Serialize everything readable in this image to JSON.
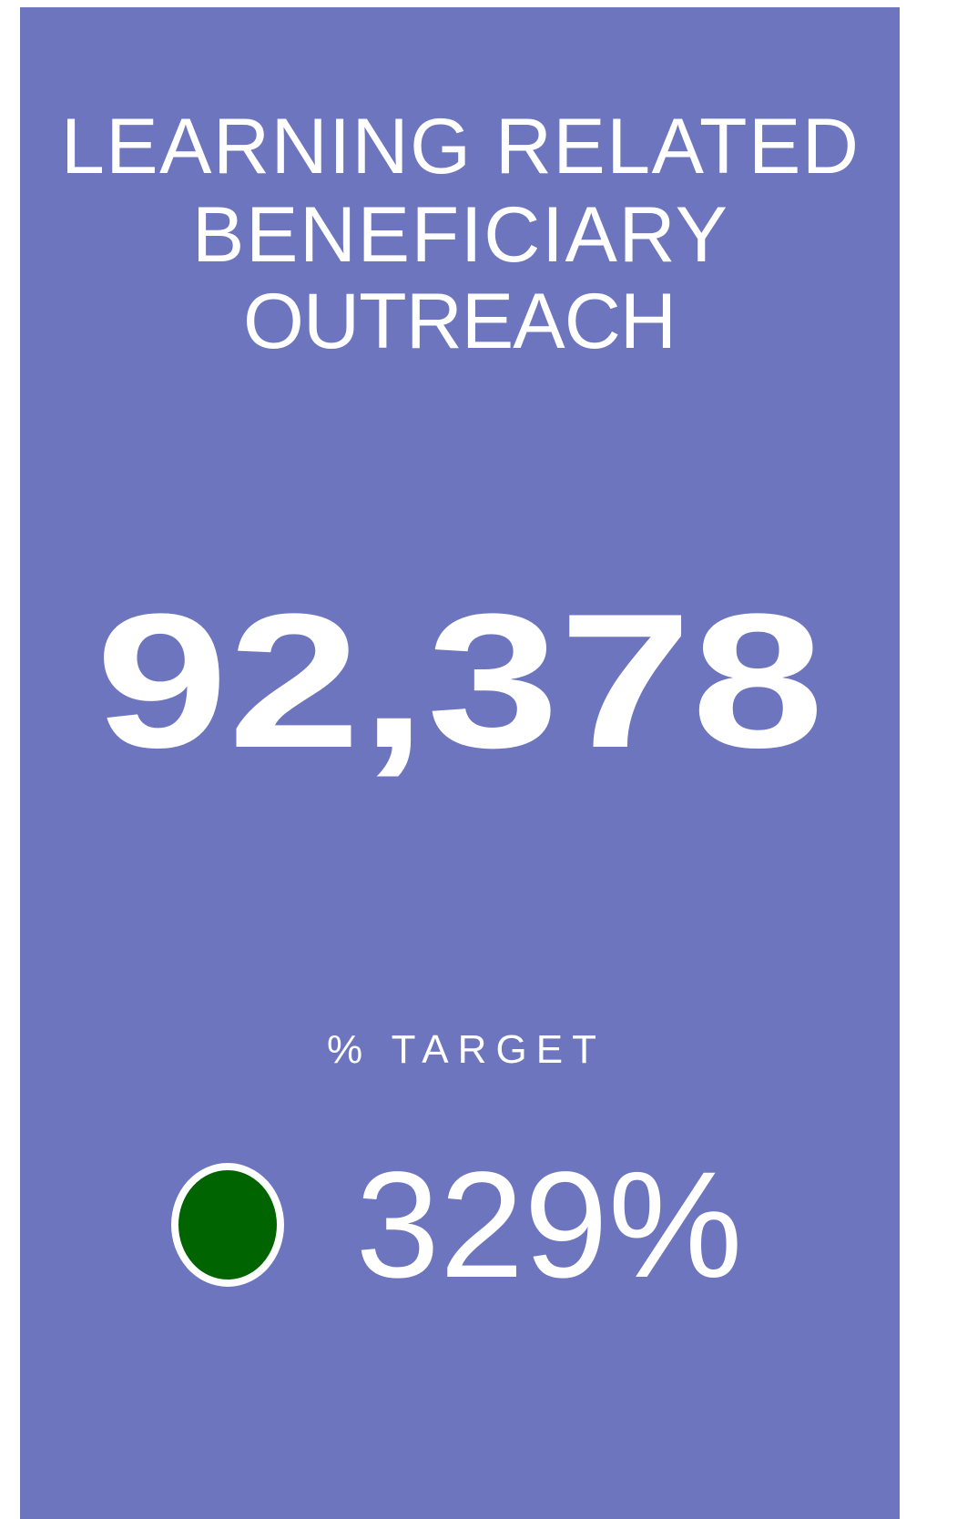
{
  "card": {
    "title_lines": [
      "LEARNING RELATED",
      "BENEFICIARY",
      "OUTREACH"
    ],
    "value": "92,378",
    "target_label": "% TARGET",
    "target_value": "329%",
    "status_color": "#006400"
  }
}
